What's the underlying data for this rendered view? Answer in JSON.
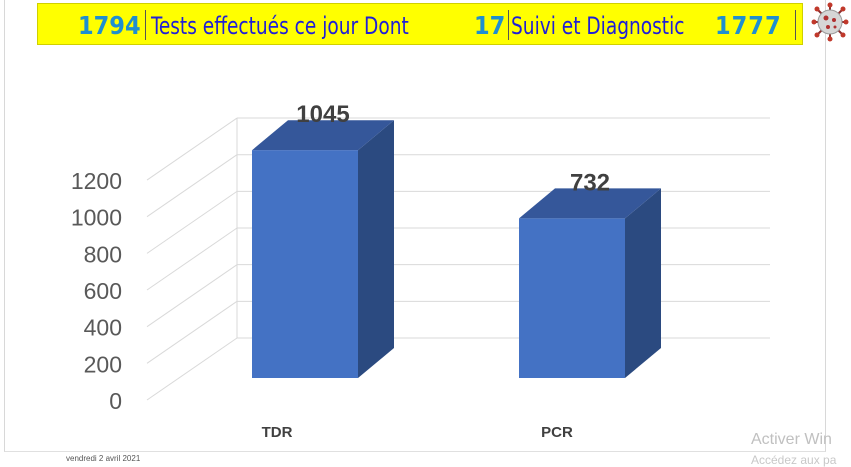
{
  "banner": {
    "total_tests": "1794",
    "tests_label": "Tests effectués ce jour  Dont",
    "followup_count": "17",
    "followup_label": "Suivi et Diagnostic",
    "diagnostic_count": "1777"
  },
  "icon": "coronavirus-icon",
  "footer": {
    "date": "vendredi 2 avril 2021"
  },
  "watermark": {
    "line1": "Activer Win",
    "line2": "Accédez aux pa"
  },
  "colors": {
    "banner_bg": "#ffff00",
    "banner_number": "#1f8fd0",
    "banner_text": "#1f1fd8",
    "bar_front": "#4472c4",
    "bar_side": "#2b4a80",
    "bar_top": "#35579a"
  },
  "chart_data": {
    "type": "bar",
    "style": "3d-column",
    "categories": [
      "TDR",
      "PCR"
    ],
    "values": [
      1045,
      732
    ],
    "data_labels": [
      "1045",
      "732"
    ],
    "yticks": [
      "0",
      "200",
      "400",
      "600",
      "800",
      "1000",
      "1200"
    ],
    "ylim": [
      0,
      1200
    ],
    "title": "",
    "xlabel": "",
    "ylabel": "",
    "grid": true,
    "legend": "none"
  }
}
